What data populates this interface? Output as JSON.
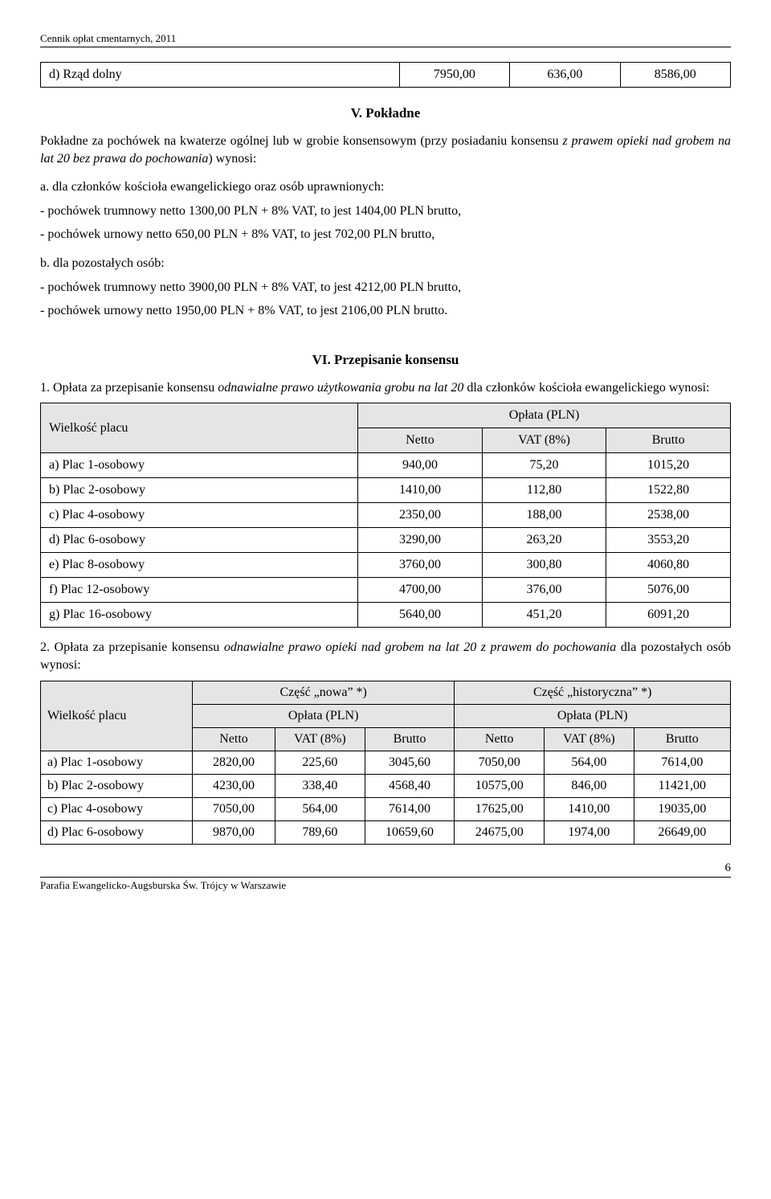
{
  "header": "Cennik opłat cmentarnych, 2011",
  "top_row": {
    "label": "d)  Rząd dolny",
    "c1": "7950,00",
    "c2": "636,00",
    "c3": "8586,00"
  },
  "sec5_title": "V. Pokładne",
  "sec5_intro_a": "Pokładne za pochówek na kwaterze ogólnej lub w grobie konsensowym (przy posiadaniu konsensu ",
  "sec5_intro_i": "z prawem opieki nad grobem na lat 20 bez prawa do pochowania",
  "sec5_intro_b": ") wynosi:",
  "a_label": "a. dla członków kościoła ewangelickiego oraz osób uprawnionych:",
  "a_line1": "- pochówek trumnowy netto 1300,00 PLN + 8% VAT, to jest 1404,00 PLN brutto,",
  "a_line2": "- pochówek urnowy netto 650,00 PLN + 8% VAT, to jest 702,00 PLN brutto,",
  "b_label": "b. dla pozostałych osób:",
  "b_line1": "- pochówek trumnowy netto 3900,00 PLN + 8% VAT, to jest 4212,00 PLN brutto,",
  "b_line2": "- pochówek urnowy netto 1950,00 PLN + 8% VAT, to jest 2106,00 PLN brutto.",
  "sec6_title": "VI. Przepisanie konsensu",
  "sec6_p1_a": "1. Opłata za przepisanie konsensu ",
  "sec6_p1_i": "odnawialne prawo użytkowania grobu na lat 20",
  "sec6_p1_b": " dla członków kościoła ewangelickiego wynosi:",
  "t1_h_wp": "Wielkość placu",
  "t1_h_op": "Opłata (PLN)",
  "t1_h_net": "Netto",
  "t1_h_vat": "VAT (8%)",
  "t1_h_br": "Brutto",
  "t1_rows": [
    {
      "l": "a)  Plac 1-osobowy",
      "n": "940,00",
      "v": "75,20",
      "b": "1015,20"
    },
    {
      "l": "b)  Plac 2-osobowy",
      "n": "1410,00",
      "v": "112,80",
      "b": "1522,80"
    },
    {
      "l": "c)  Plac 4-osobowy",
      "n": "2350,00",
      "v": "188,00",
      "b": "2538,00"
    },
    {
      "l": "d)  Plac 6-osobowy",
      "n": "3290,00",
      "v": "263,20",
      "b": "3553,20"
    },
    {
      "l": "e)  Plac 8-osobowy",
      "n": "3760,00",
      "v": "300,80",
      "b": "4060,80"
    },
    {
      "l": "f)  Plac 12-osobowy",
      "n": "4700,00",
      "v": "376,00",
      "b": "5076,00"
    },
    {
      "l": "g)  Plac 16-osobowy",
      "n": "5640,00",
      "v": "451,20",
      "b": "6091,20"
    }
  ],
  "sec6_p2_a": "2. Opłata za przepisanie konsensu ",
  "sec6_p2_i": "odnawialne prawo opieki nad grobem na lat 20 z prawem do pochowania",
  "sec6_p2_b": " dla pozostałych osób wynosi:",
  "t2_h_wp": "Wielkość placu",
  "t2_h_nowa": "Część „nowa” *)",
  "t2_h_hist": "Część „historyczna” *)",
  "t2_h_op": "Opłata (PLN)",
  "t2_h_net": "Netto",
  "t2_h_vat": "VAT (8%)",
  "t2_h_br": "Brutto",
  "t2_rows": [
    {
      "l": "a)  Plac 1-osobowy",
      "n1": "2820,00",
      "v1": "225,60",
      "b1": "3045,60",
      "n2": "7050,00",
      "v2": "564,00",
      "b2": "7614,00"
    },
    {
      "l": "b)  Plac 2-osobowy",
      "n1": "4230,00",
      "v1": "338,40",
      "b1": "4568,40",
      "n2": "10575,00",
      "v2": "846,00",
      "b2": "11421,00"
    },
    {
      "l": "c)  Plac 4-osobowy",
      "n1": "7050,00",
      "v1": "564,00",
      "b1": "7614,00",
      "n2": "17625,00",
      "v2": "1410,00",
      "b2": "19035,00"
    },
    {
      "l": "d)  Plac 6-osobowy",
      "n1": "9870,00",
      "v1": "789,60",
      "b1": "10659,60",
      "n2": "24675,00",
      "v2": "1974,00",
      "b2": "26649,00"
    }
  ],
  "footer": "Parafia Ewangelicko-Augsburska Św. Trójcy w Warszawie",
  "page": "6"
}
